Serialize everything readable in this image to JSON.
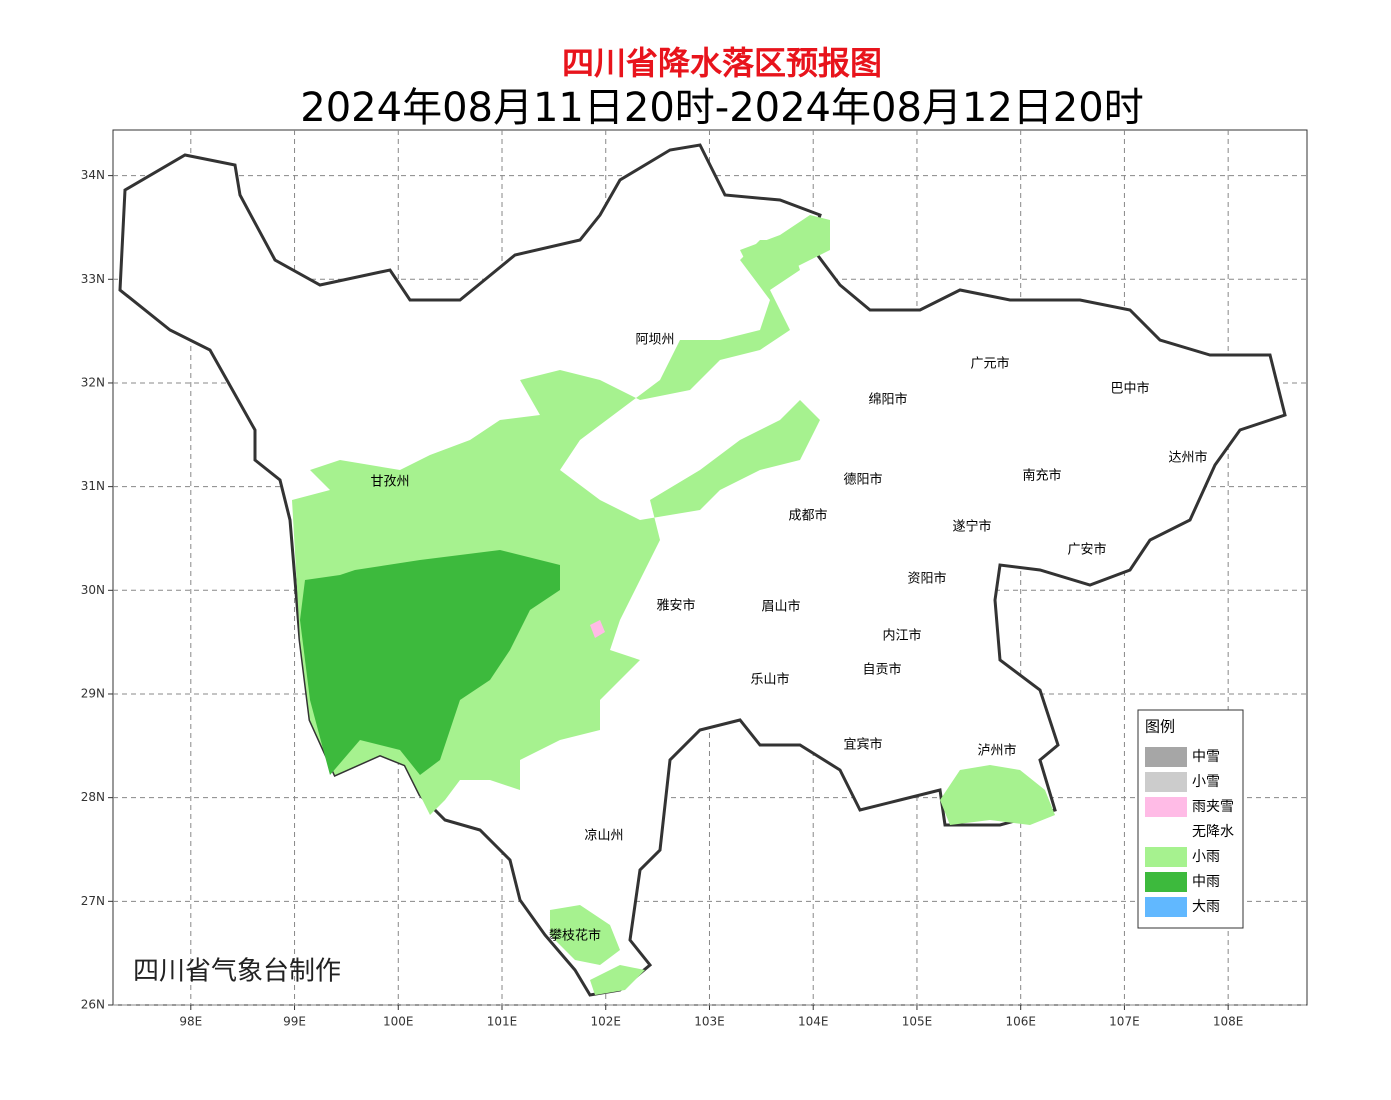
{
  "header": {
    "title": "四川省降水落区预报图",
    "subtitle": "2024年08月11日20时-2024年08月12日20时"
  },
  "map": {
    "xlim": [
      97.25,
      108.76
    ],
    "ylim": [
      26,
      34.44
    ],
    "xticks": [
      {
        "value": 98,
        "label": "98E"
      },
      {
        "value": 99,
        "label": "99E"
      },
      {
        "value": 100,
        "label": "100E"
      },
      {
        "value": 101,
        "label": "101E"
      },
      {
        "value": 102,
        "label": "102E"
      },
      {
        "value": 103,
        "label": "103E"
      },
      {
        "value": 104,
        "label": "104E"
      },
      {
        "value": 105,
        "label": "105E"
      },
      {
        "value": 106,
        "label": "106E"
      },
      {
        "value": 107,
        "label": "107E"
      },
      {
        "value": 108,
        "label": "108E"
      }
    ],
    "yticks": [
      {
        "value": 26,
        "label": "26N"
      },
      {
        "value": 27,
        "label": "27N"
      },
      {
        "value": 28,
        "label": "28N"
      },
      {
        "value": 29,
        "label": "29N"
      },
      {
        "value": 30,
        "label": "30N"
      },
      {
        "value": 31,
        "label": "31N"
      },
      {
        "value": 32,
        "label": "32N"
      },
      {
        "value": 33,
        "label": "33N"
      },
      {
        "value": 34,
        "label": "34N"
      }
    ],
    "places": [
      "阿坝州",
      "甘孜州",
      "绵阳市",
      "广元市",
      "巴中市",
      "达州市",
      "南充市",
      "德阳市",
      "成都市",
      "遂宁市",
      "广安市",
      "资阳市",
      "雅安市",
      "眉山市",
      "内江市",
      "自贡市",
      "乐山市",
      "宜宾市",
      "泸州市",
      "凉山州",
      "攀枝花市"
    ]
  },
  "legend": {
    "title": "图例",
    "items": [
      {
        "label": "中雪",
        "color": "#a6a6a6"
      },
      {
        "label": "小雪",
        "color": "#cccccc"
      },
      {
        "label": "雨夹雪",
        "color": "#ffbbe6"
      },
      {
        "label": "无降水",
        "color": "#ffffff"
      },
      {
        "label": "小雨",
        "color": "#a6f28f"
      },
      {
        "label": "中雨",
        "color": "#3dba3d"
      },
      {
        "label": "大雨",
        "color": "#61b8ff"
      }
    ]
  },
  "credit": "四川省气象台制作"
}
